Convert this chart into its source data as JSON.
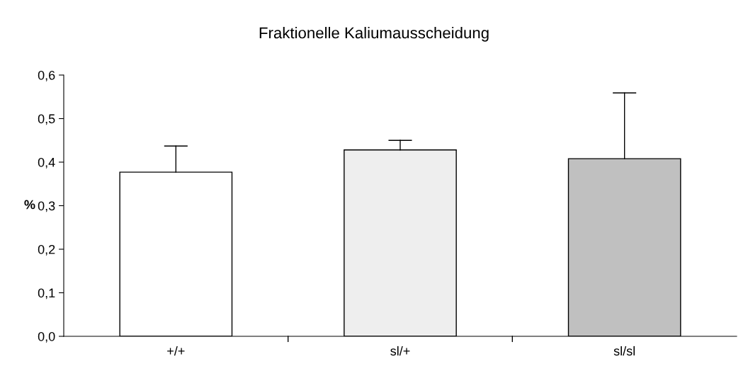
{
  "chart_data": {
    "type": "bar",
    "title": "Fraktionelle Kaliumausscheidung",
    "ylabel": "%",
    "categories": [
      "+/+",
      "sl/+",
      "sl/sl"
    ],
    "values": [
      0.377,
      0.428,
      0.408
    ],
    "colors": [
      "#ffffff",
      "#eeeeee",
      "#c0c0c0"
    ],
    "errors": [
      [
        0.377,
        0.437
      ],
      [
        0.428,
        0.45
      ],
      [
        0.408,
        0.559
      ]
    ],
    "ylim": [
      0,
      0.6
    ],
    "yticks": [
      {
        "value": 0,
        "label": "0,0"
      },
      {
        "value": 0.1,
        "label": "0,1"
      },
      {
        "value": 0.2,
        "label": "0,2"
      },
      {
        "value": 0.3,
        "label": "0,3"
      },
      {
        "value": 0.4,
        "label": "0,4"
      },
      {
        "value": 0.5,
        "label": "0,5"
      },
      {
        "value": 0.6,
        "label": "0,6"
      }
    ],
    "grid": false,
    "legend": false
  }
}
